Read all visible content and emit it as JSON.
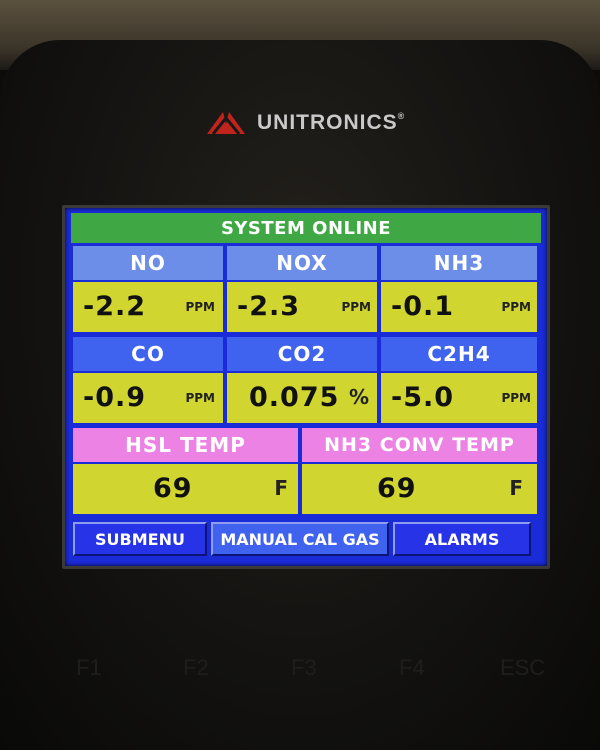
{
  "brand": {
    "name": "UNITRONICS",
    "mark": "®"
  },
  "status": "SYSTEM ONLINE",
  "gases": [
    {
      "label": "NO",
      "value": "-2.2",
      "unit": "PPM"
    },
    {
      "label": "NOX",
      "value": "-2.3",
      "unit": "PPM"
    },
    {
      "label": "NH3",
      "value": "-0.1",
      "unit": "PPM"
    },
    {
      "label": "CO",
      "value": "-0.9",
      "unit": "PPM"
    },
    {
      "label": "CO2",
      "value": "0.075",
      "unit": "%"
    },
    {
      "label": "C2H4",
      "value": "-5.0",
      "unit": "PPM"
    }
  ],
  "temps": [
    {
      "label": "HSL TEMP",
      "value": "69",
      "unit": "F"
    },
    {
      "label": "NH3 CONV TEMP",
      "value": "69",
      "unit": "F"
    }
  ],
  "buttons": {
    "submenu": "SUBMENU",
    "manual_cal": "MANUAL CAL GAS",
    "alarms": "ALARMS"
  },
  "fkeys": [
    "F1",
    "F2",
    "F3",
    "F4",
    "ESC"
  ],
  "colors": {
    "status_green": "#3fa844",
    "value_yellow": "#d0d52f",
    "header_blue": "#6c8ee8",
    "header_pink": "#ec82e4",
    "screen_blue": "#1a2bd8"
  }
}
